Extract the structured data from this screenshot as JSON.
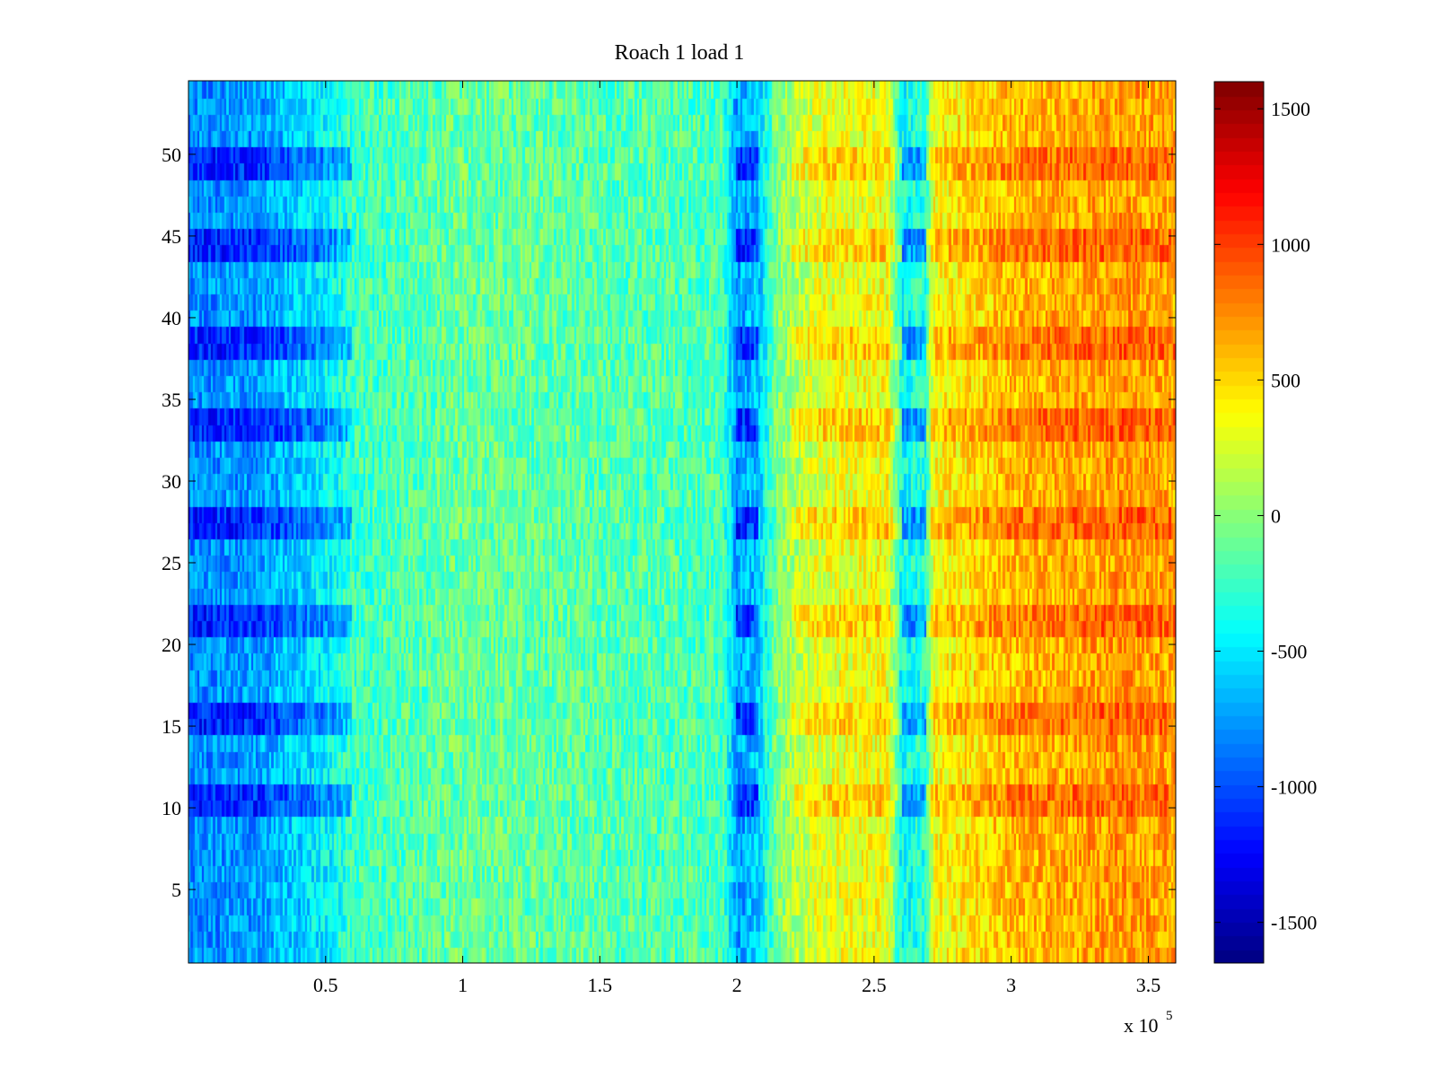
{
  "chart_data": {
    "type": "heatmap",
    "title": "Roach 1 load 1",
    "xlabel": "",
    "ylabel": "",
    "xlim": [
      0,
      360000
    ],
    "ylim": [
      0.5,
      54.5
    ],
    "rows": 54,
    "x_exponent_label": {
      "base": "x 10",
      "exp": "5"
    },
    "x_ticks": [
      {
        "value": 50000,
        "label": "0.5"
      },
      {
        "value": 100000,
        "label": "1"
      },
      {
        "value": 150000,
        "label": "1.5"
      },
      {
        "value": 200000,
        "label": "2"
      },
      {
        "value": 250000,
        "label": "2.5"
      },
      {
        "value": 300000,
        "label": "3"
      },
      {
        "value": 350000,
        "label": "3.5"
      }
    ],
    "y_ticks": [
      {
        "value": 5,
        "label": "5"
      },
      {
        "value": 10,
        "label": "10"
      },
      {
        "value": 15,
        "label": "15"
      },
      {
        "value": 20,
        "label": "20"
      },
      {
        "value": 25,
        "label": "25"
      },
      {
        "value": 30,
        "label": "30"
      },
      {
        "value": 35,
        "label": "35"
      },
      {
        "value": 40,
        "label": "40"
      },
      {
        "value": 45,
        "label": "45"
      },
      {
        "value": 50,
        "label": "50"
      }
    ],
    "colorbar": {
      "colormap": "jet",
      "clim": [
        -1650,
        1600
      ],
      "ticks": [
        {
          "value": 1500,
          "label": "1500"
        },
        {
          "value": 1000,
          "label": "1000"
        },
        {
          "value": 500,
          "label": "500"
        },
        {
          "value": 0,
          "label": "0"
        },
        {
          "value": -500,
          "label": "-500"
        },
        {
          "value": -1000,
          "label": "-1000"
        },
        {
          "value": -1500,
          "label": "-1500"
        }
      ]
    },
    "x_value_profile": [
      {
        "x": 0,
        "value": -800
      },
      {
        "x": 25000,
        "value": -750
      },
      {
        "x": 50000,
        "value": -450
      },
      {
        "x": 60000,
        "value": -250
      },
      {
        "x": 100000,
        "value": -100
      },
      {
        "x": 150000,
        "value": -150
      },
      {
        "x": 195000,
        "value": -200
      },
      {
        "x": 200000,
        "value": -750
      },
      {
        "x": 208000,
        "value": -600
      },
      {
        "x": 215000,
        "value": 0
      },
      {
        "x": 230000,
        "value": 300
      },
      {
        "x": 255000,
        "value": 350
      },
      {
        "x": 260000,
        "value": -400
      },
      {
        "x": 269000,
        "value": -300
      },
      {
        "x": 272000,
        "value": 350
      },
      {
        "x": 300000,
        "value": 600
      },
      {
        "x": 340000,
        "value": 700
      },
      {
        "x": 360000,
        "value": 650
      }
    ],
    "row_emphasis_rows": [
      10,
      11,
      15,
      16,
      21,
      22,
      27,
      28,
      33,
      34,
      38,
      39,
      44,
      45,
      49,
      50
    ],
    "dark_band_x_ranges": [
      [
        200000,
        208000
      ],
      [
        260000,
        269000
      ]
    ],
    "noise_amplitude": 250
  },
  "colors": {
    "background": "#ffffff",
    "axis": "#000000"
  }
}
